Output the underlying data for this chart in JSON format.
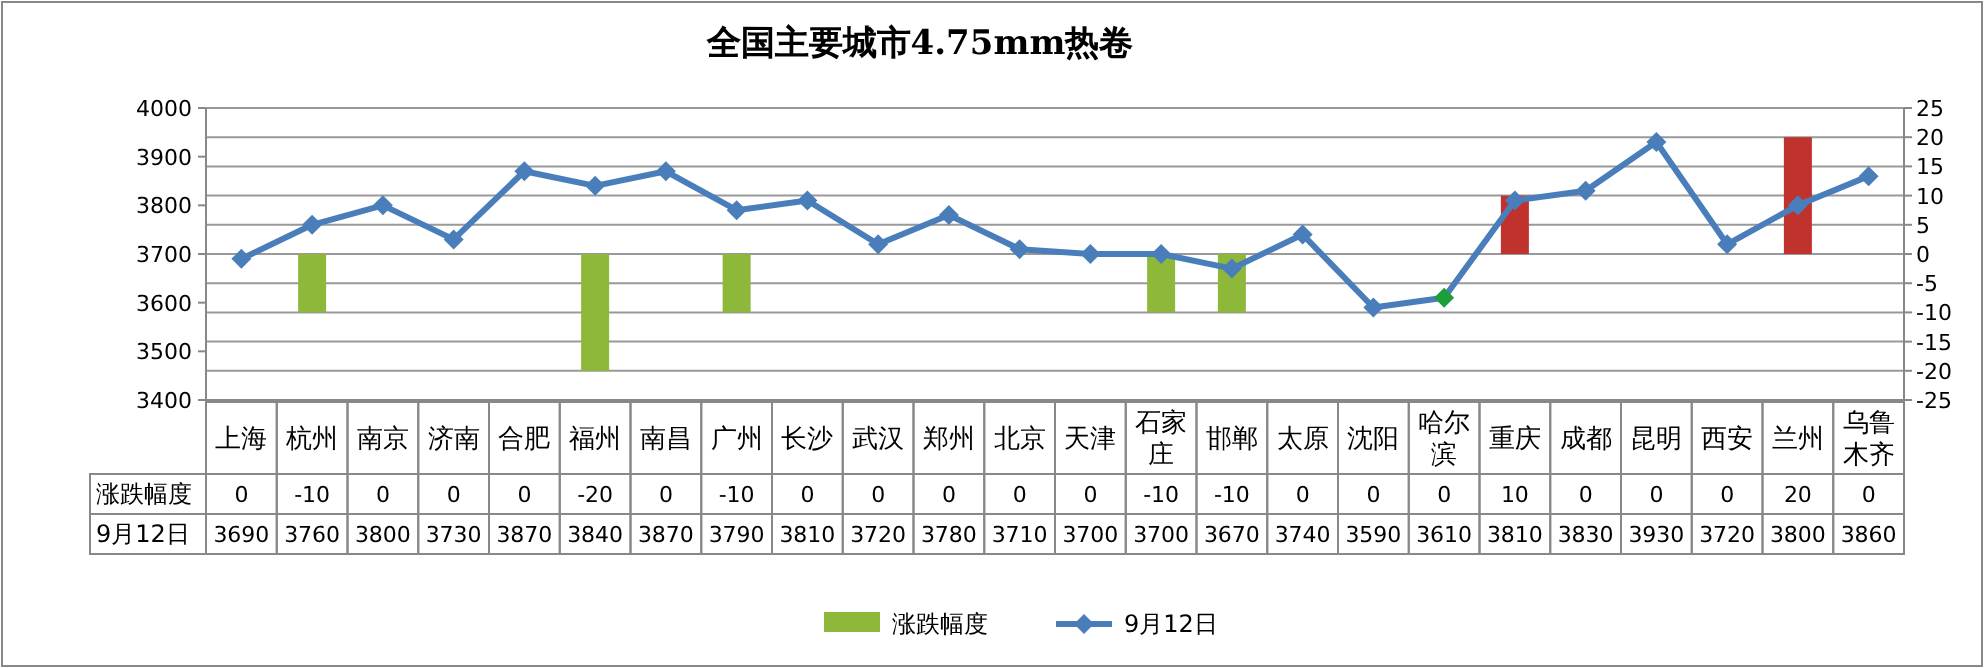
{
  "chart_data": {
    "type": "bar",
    "title": "全国主要城市4.75mm热卷",
    "categories": [
      "上海",
      "杭州",
      "南京",
      "济南",
      "合肥",
      "福州",
      "南昌",
      "广州",
      "长沙",
      "武汉",
      "郑州",
      "北京",
      "天津",
      "石家庄",
      "邯郸",
      "太原",
      "沈阳",
      "哈尔滨",
      "重庆",
      "成都",
      "昆明",
      "西安",
      "兰州",
      "乌鲁木齐"
    ],
    "series": [
      {
        "name": "涨跌幅度",
        "axis": "y2",
        "color": "#8db83a",
        "colors": [
          "#8db83a",
          "#8db83a",
          "#8db83a",
          "#8db83a",
          "#8db83a",
          "#8db83a",
          "#8db83a",
          "#8db83a",
          "#8db83a",
          "#8db83a",
          "#8db83a",
          "#8db83a",
          "#8db83a",
          "#8db83a",
          "#8db83a",
          "#8db83a",
          "#8db83a",
          "#8db83a",
          "#c0322e",
          "#8db83a",
          "#8db83a",
          "#8db83a",
          "#c0322e",
          "#8db83a"
        ],
        "values": [
          0,
          -10,
          0,
          0,
          0,
          -20,
          0,
          -10,
          0,
          0,
          0,
          0,
          0,
          -10,
          -10,
          0,
          0,
          0,
          10,
          0,
          0,
          0,
          20,
          0
        ]
      },
      {
        "name": "9月12日",
        "type": "line",
        "axis": "y",
        "color": "#4a7ebb",
        "colors": [
          "#4a7ebb",
          "#4a7ebb",
          "#4a7ebb",
          "#4a7ebb",
          "#4a7ebb",
          "#4a7ebb",
          "#4a7ebb",
          "#4a7ebb",
          "#4a7ebb",
          "#4a7ebb",
          "#4a7ebb",
          "#4a7ebb",
          "#4a7ebb",
          "#4a7ebb",
          "#4a7ebb",
          "#4a7ebb",
          "#4a7ebb",
          "#1e9e3a",
          "#4a7ebb",
          "#4a7ebb",
          "#4a7ebb",
          "#4a7ebb",
          "#4a7ebb",
          "#4a7ebb"
        ],
        "values": [
          3690,
          3760,
          3800,
          3730,
          3870,
          3840,
          3870,
          3790,
          3810,
          3720,
          3780,
          3710,
          3700,
          3700,
          3670,
          3740,
          3590,
          3610,
          3810,
          3830,
          3930,
          3720,
          3800,
          3860
        ]
      }
    ],
    "ylim": [
      3400,
      4000
    ],
    "yticks": [
      3400,
      3500,
      3600,
      3700,
      3800,
      3900,
      4000
    ],
    "y2lim": [
      -25,
      25
    ],
    "y2ticks": [
      -25,
      -20,
      -15,
      -10,
      -5,
      0,
      5,
      10,
      15,
      20,
      25
    ],
    "grid": true,
    "legend": "bottom",
    "marker": "diamond",
    "line_style": "solid",
    "data_labels": true
  }
}
